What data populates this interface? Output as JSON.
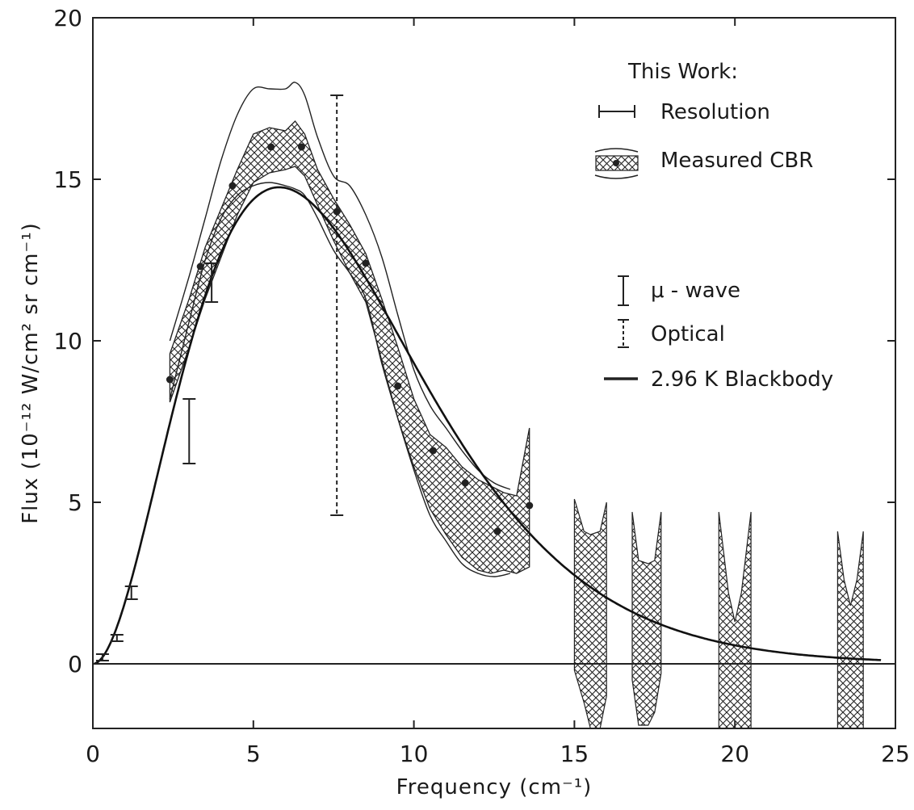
{
  "chart_data": {
    "type": "line",
    "title": "",
    "xlabel": "Frequency (cm⁻¹)",
    "ylabel": "Flux (10⁻¹² W/cm² sr cm⁻¹)",
    "xlim": [
      0,
      25
    ],
    "ylim": [
      -2,
      20
    ],
    "x_ticks": [
      0,
      5,
      10,
      15,
      20,
      25
    ],
    "y_ticks": [
      0,
      5,
      10,
      15,
      20
    ],
    "x_tick_labels": [
      "0",
      "5",
      "10",
      "15",
      "20",
      "25"
    ],
    "y_tick_labels": [
      "0",
      "5",
      "10",
      "15",
      "20"
    ],
    "grid": false,
    "legend": {
      "placement": "top-right",
      "header": "This Work:",
      "entries": [
        {
          "key": "resolution",
          "label": "Resolution"
        },
        {
          "key": "measured",
          "label": "Measured CBR"
        },
        {
          "key": "mu_wave",
          "label": "μ - wave"
        },
        {
          "key": "optical",
          "label": "Optical"
        },
        {
          "key": "blackbody",
          "label": "2.96 K Blackbody"
        }
      ]
    },
    "series": [
      {
        "name": "2.96 K Blackbody",
        "kind": "curve",
        "temperature_K": 2.96
      },
      {
        "name": "Measured CBR",
        "kind": "points",
        "x": [
          2.4,
          3.35,
          4.35,
          5.55,
          6.5,
          7.6,
          8.5,
          9.5,
          10.6,
          11.6,
          12.6,
          13.6
        ],
        "y": [
          8.8,
          12.3,
          14.8,
          16.0,
          16.0,
          14.0,
          12.4,
          8.6,
          6.6,
          5.6,
          4.1,
          4.9
        ]
      },
      {
        "name": "Measured CBR band",
        "kind": "band",
        "x": [
          2.4,
          3.0,
          3.5,
          4.0,
          4.5,
          5.0,
          5.5,
          6.0,
          6.3,
          6.6,
          7.0,
          7.5,
          8.0,
          8.5,
          9.0,
          9.5,
          10.0,
          10.5,
          11.0,
          11.5,
          12.0,
          12.4,
          12.8,
          13.2,
          13.6
        ],
        "upper": [
          9.6,
          11.3,
          12.9,
          14.1,
          15.3,
          16.4,
          16.6,
          16.5,
          16.8,
          16.4,
          15.3,
          14.4,
          13.6,
          12.7,
          11.3,
          9.8,
          8.2,
          7.1,
          6.7,
          6.1,
          5.7,
          5.5,
          5.3,
          5.2,
          7.3
        ],
        "lower": [
          8.1,
          9.8,
          11.3,
          12.6,
          13.9,
          14.9,
          15.2,
          15.3,
          15.4,
          15.1,
          14.2,
          13.1,
          12.1,
          11.2,
          9.4,
          7.6,
          6.1,
          4.8,
          4.0,
          3.3,
          2.9,
          2.8,
          2.9,
          2.8,
          3.0
        ]
      },
      {
        "name": "Uncertainty envelope",
        "kind": "lines",
        "x": [
          2.4,
          3.0,
          3.5,
          4.0,
          4.5,
          5.0,
          5.5,
          6.0,
          6.3,
          6.6,
          7.0,
          7.5,
          8.0,
          8.5,
          9.0,
          9.5,
          10.0,
          10.5,
          11.0,
          11.5,
          12.0,
          12.5,
          13.0
        ],
        "upper": [
          10.0,
          12.0,
          13.8,
          15.6,
          17.0,
          17.8,
          17.8,
          17.8,
          18.0,
          17.6,
          16.3,
          15.1,
          14.8,
          13.9,
          12.6,
          10.8,
          9.1,
          8.0,
          7.3,
          6.6,
          6.0,
          5.6,
          5.4
        ],
        "lower": [
          8.2,
          10.6,
          12.5,
          13.8,
          14.5,
          14.8,
          14.9,
          14.8,
          14.7,
          14.5,
          13.8,
          12.8,
          12.1,
          11.3,
          9.3,
          7.6,
          6.0,
          4.6,
          3.8,
          3.1,
          2.8,
          2.7,
          2.8
        ]
      },
      {
        "name": "High-frequency bands",
        "kind": "bands",
        "bands": [
          {
            "x": [
              15.0,
              15.3,
              15.5,
              15.8,
              16.0
            ],
            "upper": [
              5.1,
              4.1,
              4.0,
              4.1,
              5.0
            ],
            "lower": [
              -0.2,
              -1.2,
              -2.0,
              -2.0,
              -1.0
            ]
          },
          {
            "x": [
              16.8,
              17.0,
              17.3,
              17.5,
              17.7
            ],
            "upper": [
              4.7,
              3.2,
              3.1,
              3.2,
              4.7
            ],
            "lower": [
              -0.5,
              -1.9,
              -1.9,
              -1.5,
              -0.3
            ]
          },
          {
            "x": [
              19.5,
              19.8,
              20.0,
              20.2,
              20.5
            ],
            "upper": [
              4.7,
              2.2,
              1.3,
              2.2,
              4.7
            ],
            "lower": [
              -2.0,
              -2.0,
              -2.0,
              -2.0,
              -2.0
            ]
          },
          {
            "x": [
              23.2,
              23.4,
              23.6,
              23.8,
              24.0
            ],
            "upper": [
              4.1,
              2.6,
              1.8,
              2.6,
              4.1
            ],
            "lower": [
              -2.0,
              -2.0,
              -2.0,
              -2.0,
              -2.0
            ]
          }
        ]
      },
      {
        "name": "μ - wave",
        "kind": "errorbars",
        "points": [
          {
            "x": 0.3,
            "low": 0.1,
            "high": 0.3
          },
          {
            "x": 0.75,
            "low": 0.7,
            "high": 0.9
          },
          {
            "x": 1.2,
            "low": 2.0,
            "high": 2.4
          },
          {
            "x": 3.0,
            "low": 6.2,
            "high": 8.2
          },
          {
            "x": 3.7,
            "low": 11.2,
            "high": 12.4
          }
        ]
      },
      {
        "name": "Optical",
        "kind": "errorbars",
        "points": [
          {
            "x": 7.6,
            "low": 4.6,
            "high": 17.6
          }
        ]
      }
    ]
  }
}
